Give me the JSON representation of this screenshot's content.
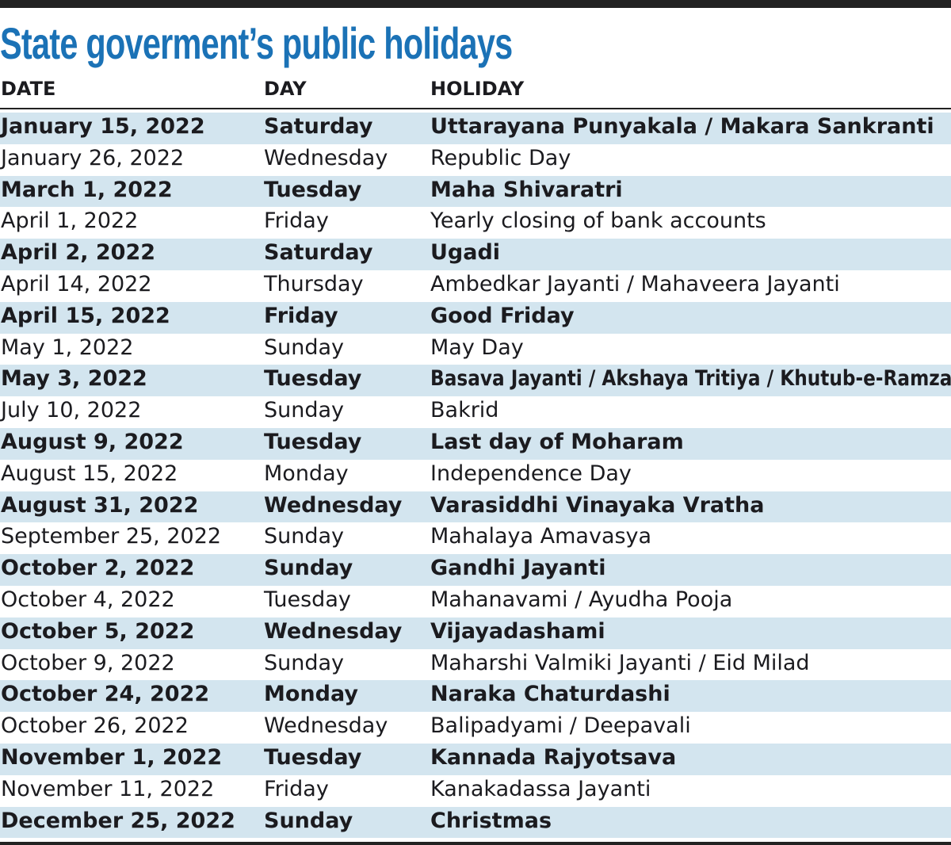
{
  "title": "State goverment’s public holidays",
  "columns": [
    "DATE",
    "DAY",
    "HOLIDAY"
  ],
  "colors": {
    "title": "#1b72b6",
    "row_shade": "#d3e5ef",
    "rule": "#222222"
  },
  "rows": [
    {
      "date": "January 15, 2022",
      "day": "Saturday",
      "holiday": "Uttarayana Punyakala / Makara Sankranti"
    },
    {
      "date": "January 26, 2022",
      "day": "Wednesday",
      "holiday": "Republic Day"
    },
    {
      "date": "March 1, 2022",
      "day": "Tuesday",
      "holiday": "Maha Shivaratri"
    },
    {
      "date": "April 1, 2022",
      "day": "Friday",
      "holiday": "Yearly closing of bank accounts"
    },
    {
      "date": "April 2, 2022",
      "day": "Saturday",
      "holiday": "Ugadi"
    },
    {
      "date": "April 14, 2022",
      "day": "Thursday",
      "holiday": "Ambedkar Jayanti / Mahaveera Jayanti"
    },
    {
      "date": "April 15, 2022",
      "day": "Friday",
      "holiday": "Good Friday"
    },
    {
      "date": "May 1, 2022",
      "day": "Sunday",
      "holiday": "May Day"
    },
    {
      "date": "May 3, 2022",
      "day": "Tuesday",
      "holiday": "Basava Jayanti / Akshaya Tritiya / Khutub-e-Ramzan"
    },
    {
      "date": "July 10, 2022",
      "day": "Sunday",
      "holiday": "Bakrid"
    },
    {
      "date": "August 9, 2022",
      "day": "Tuesday",
      "holiday": "Last day of Moharam"
    },
    {
      "date": "August 15, 2022",
      "day": "Monday",
      "holiday": "Independence Day"
    },
    {
      "date": "August 31, 2022",
      "day": "Wednesday",
      "holiday": "Varasiddhi Vinayaka Vratha"
    },
    {
      "date": "September 25, 2022",
      "day": "Sunday",
      "holiday": "Mahalaya Amavasya"
    },
    {
      "date": "October 2, 2022",
      "day": "Sunday",
      "holiday": "Gandhi Jayanti"
    },
    {
      "date": "October 4, 2022",
      "day": "Tuesday",
      "holiday": "Mahanavami / Ayudha Pooja"
    },
    {
      "date": "October 5, 2022",
      "day": "Wednesday",
      "holiday": "Vijayadashami"
    },
    {
      "date": "October 9, 2022",
      "day": "Sunday",
      "holiday": "Maharshi Valmiki Jayanti / Eid Milad"
    },
    {
      "date": "October 24, 2022",
      "day": "Monday",
      "holiday": "Naraka Chaturdashi"
    },
    {
      "date": "October 26, 2022",
      "day": "Wednesday",
      "holiday": "Balipadyami / Deepavali"
    },
    {
      "date": "November 1, 2022",
      "day": "Tuesday",
      "holiday": "Kannada Rajyotsava"
    },
    {
      "date": "November 11, 2022",
      "day": "Friday",
      "holiday": "Kanakadassa Jayanti"
    },
    {
      "date": "December 25, 2022",
      "day": "Sunday",
      "holiday": "Christmas"
    }
  ]
}
